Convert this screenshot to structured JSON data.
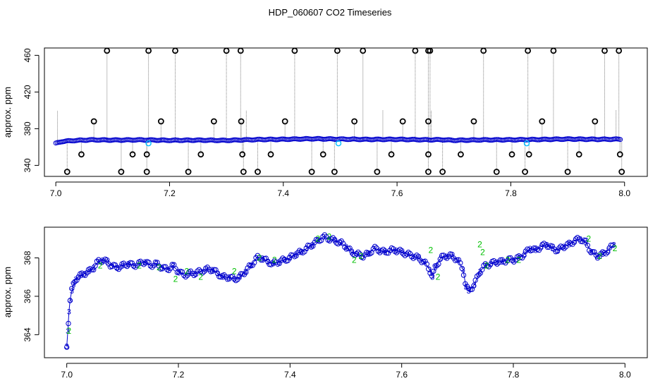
{
  "figure": {
    "title": "HDP_060607  CO2 Timeseries"
  },
  "chart_data": [
    {
      "type": "scatter",
      "title": "HDP_060607  CO2 Timeseries",
      "xlabel": "",
      "ylabel": "approx. ppm",
      "xlim": [
        6.98,
        8.04
      ],
      "ylim": [
        328,
        468
      ],
      "xticks": [
        "7.0",
        "7.2",
        "7.4",
        "7.6",
        "7.8",
        "8.0"
      ],
      "yticks": [
        "340",
        "380",
        "420",
        "460"
      ],
      "grid": false,
      "colors": {
        "main": "#0000cd",
        "marker": "#00bfff",
        "outlier": "#000000",
        "spike": "#808080"
      },
      "baseline": {
        "x": [
          7.0,
          7.01,
          7.03,
          7.06,
          7.1,
          7.15,
          7.2,
          7.25,
          7.3,
          7.33,
          7.36,
          7.4,
          7.45,
          7.5,
          7.55,
          7.6,
          7.65,
          7.68,
          7.7,
          7.75,
          7.8,
          7.85,
          7.9,
          7.95,
          7.99
        ],
        "y": [
          364.0,
          366.0,
          367.0,
          367.8,
          367.6,
          367.8,
          367.3,
          367.5,
          367.2,
          367.8,
          368.2,
          368.4,
          369.0,
          368.6,
          368.3,
          368.4,
          367.9,
          368.0,
          367.3,
          367.8,
          367.9,
          368.2,
          368.7,
          368.4,
          368.5
        ]
      },
      "marker_points": {
        "x": [
          7.163,
          7.497,
          7.828
        ],
        "y": [
          364,
          364,
          364
        ]
      },
      "outliers_high": {
        "x": [
          7.09,
          7.163,
          7.21,
          7.3,
          7.325,
          7.42,
          7.495,
          7.54,
          7.632,
          7.655,
          7.658,
          7.752,
          7.83,
          7.875,
          7.965,
          7.99
        ],
        "y": [
          465,
          465,
          465,
          465,
          465,
          465,
          465,
          465,
          465,
          465,
          465,
          465,
          465,
          465,
          465,
          465
        ]
      },
      "outliers_mid": {
        "x": [
          7.067,
          7.185,
          7.278,
          7.326,
          7.403,
          7.525,
          7.61,
          7.655,
          7.735,
          7.855,
          7.948
        ],
        "y": [
          388,
          388,
          388,
          388,
          388,
          388,
          388,
          388,
          388,
          388,
          388
        ]
      },
      "outliers_lowmid": {
        "x": [
          7.045,
          7.135,
          7.16,
          7.255,
          7.328,
          7.378,
          7.47,
          7.59,
          7.655,
          7.712,
          7.802,
          7.832,
          7.92,
          7.992
        ],
        "y": [
          352,
          352,
          352,
          352,
          352,
          352,
          352,
          352,
          352,
          352,
          352,
          352,
          352,
          352
        ]
      },
      "outliers_low": {
        "x": [
          7.02,
          7.115,
          7.16,
          7.233,
          7.33,
          7.355,
          7.45,
          7.49,
          7.565,
          7.655,
          7.68,
          7.775,
          7.825,
          7.9,
          7.995
        ],
        "y": [
          333,
          333,
          333,
          333,
          333,
          333,
          333,
          333,
          333,
          333,
          333,
          333,
          333,
          333,
          333
        ]
      }
    },
    {
      "type": "scatter",
      "title": "",
      "xlabel": "",
      "ylabel": "approx. ppm",
      "xlim": [
        6.96,
        8.04
      ],
      "ylim": [
        362.8,
        369.6
      ],
      "xticks": [
        "7.0",
        "7.2",
        "7.4",
        "7.6",
        "7.8",
        "8.0"
      ],
      "yticks": [
        "364",
        "366",
        "368"
      ],
      "grid": false,
      "symbols": [
        "3",
        "2"
      ],
      "colors": {
        "main": "#0000cd",
        "secondary": "#00c000",
        "line": "#0000cd"
      },
      "series": [
        {
          "symbol": "3",
          "x": [
            7.0,
            7.002,
            7.004,
            7.006,
            7.009,
            7.012,
            7.016,
            7.02,
            7.026,
            7.032,
            7.04,
            7.048,
            7.056,
            7.064,
            7.072,
            7.08,
            7.09,
            7.1,
            7.11,
            7.12,
            7.13,
            7.14,
            7.15,
            7.16,
            7.17,
            7.18,
            7.19,
            7.2,
            7.21,
            7.22,
            7.23,
            7.24,
            7.25,
            7.26,
            7.27,
            7.28,
            7.29,
            7.3,
            7.31,
            7.32,
            7.33,
            7.34,
            7.35,
            7.36,
            7.37,
            7.38,
            7.39,
            7.4,
            7.41,
            7.42,
            7.43,
            7.44,
            7.45,
            7.46,
            7.47,
            7.48,
            7.49,
            7.5,
            7.51,
            7.52,
            7.53,
            7.54,
            7.55,
            7.56,
            7.57,
            7.58,
            7.59,
            7.6,
            7.61,
            7.62,
            7.63,
            7.64,
            7.65,
            7.655,
            7.66,
            7.67,
            7.68,
            7.69,
            7.7,
            7.71,
            7.715,
            7.72,
            7.73,
            7.74,
            7.75,
            7.76,
            7.77,
            7.78,
            7.79,
            7.8,
            7.81,
            7.82,
            7.83,
            7.84,
            7.85,
            7.86,
            7.87,
            7.88,
            7.89,
            7.9,
            7.91,
            7.92,
            7.93,
            7.94,
            7.95,
            7.96,
            7.97,
            7.98
          ],
          "y": [
            363.4,
            364.2,
            365.2,
            365.8,
            366.3,
            366.6,
            366.9,
            367.0,
            367.1,
            367.2,
            367.3,
            367.5,
            367.8,
            367.9,
            367.8,
            367.6,
            367.5,
            367.6,
            367.7,
            367.6,
            367.7,
            367.8,
            367.6,
            367.7,
            367.5,
            367.4,
            367.6,
            367.3,
            367.1,
            367.2,
            367.2,
            367.3,
            367.4,
            367.4,
            367.2,
            367.0,
            367.0,
            366.9,
            367.0,
            367.3,
            367.6,
            368.0,
            368.0,
            367.8,
            367.7,
            367.8,
            367.9,
            368.0,
            368.2,
            368.3,
            368.5,
            368.7,
            368.9,
            369.1,
            369.0,
            368.9,
            368.8,
            368.6,
            368.3,
            368.2,
            368.1,
            368.2,
            368.5,
            368.4,
            368.3,
            368.4,
            368.4,
            368.3,
            368.2,
            368.1,
            368.0,
            367.8,
            367.4,
            367.0,
            367.5,
            368.0,
            368.1,
            368.1,
            367.9,
            367.4,
            366.5,
            366.3,
            366.6,
            367.3,
            367.6,
            367.7,
            367.8,
            367.8,
            367.9,
            367.9,
            368.0,
            368.2,
            368.5,
            368.4,
            368.6,
            368.7,
            368.5,
            368.4,
            368.6,
            368.7,
            368.9,
            369.0,
            368.8,
            368.3,
            368.1,
            368.2,
            368.4,
            368.7
          ]
        },
        {
          "symbol": "2",
          "x": [
            7.004,
            7.06,
            7.13,
            7.165,
            7.195,
            7.215,
            7.24,
            7.3,
            7.345,
            7.372,
            7.45,
            7.47,
            7.515,
            7.527,
            7.652,
            7.665,
            7.74,
            7.745,
            7.752,
            7.79,
            7.81,
            7.935,
            7.955,
            7.982
          ],
          "y": [
            364.2,
            367.6,
            367.6,
            367.5,
            366.9,
            367.3,
            367.0,
            367.3,
            368.0,
            367.9,
            369.0,
            369.1,
            367.9,
            368.1,
            368.4,
            367.0,
            368.7,
            368.3,
            367.6,
            367.9,
            367.9,
            369.0,
            368.1,
            368.5
          ]
        }
      ]
    }
  ]
}
